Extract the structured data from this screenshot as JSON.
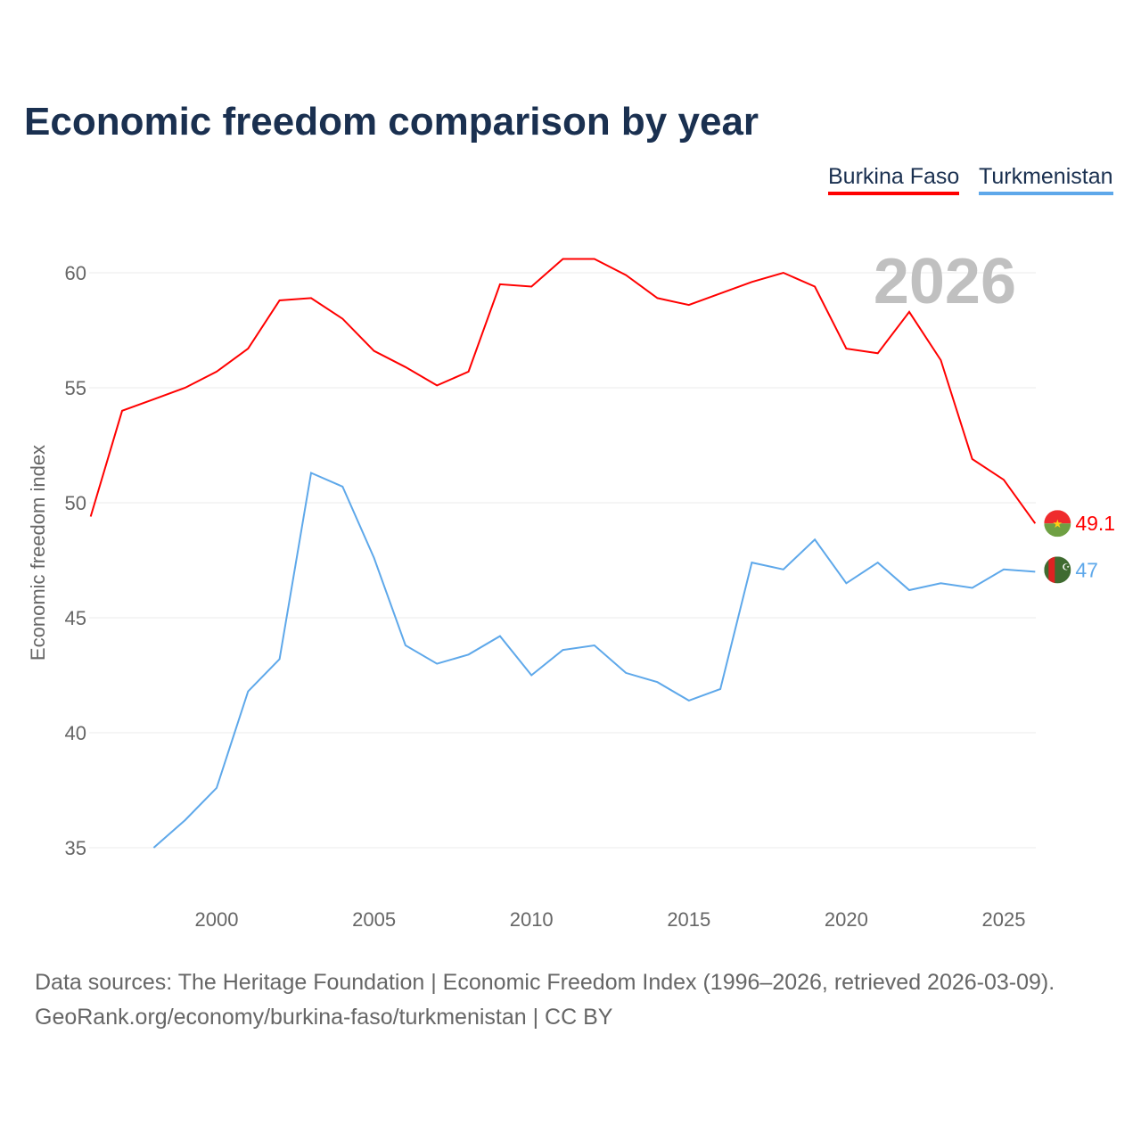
{
  "title": "Economic freedom comparison by year",
  "year_badge": "2026",
  "footer": {
    "line1": "Data sources: The Heritage Foundation | Economic Freedom Index (1996–2026, retrieved 2026-03-09).",
    "line2": "GeoRank.org/economy/burkina-faso/turkmenistan | CC BY"
  },
  "chart_data": {
    "type": "line",
    "title": "Economic freedom comparison by year",
    "xlabel": "",
    "ylabel": "Economic freedom index",
    "xlim": [
      1996,
      2026
    ],
    "ylim": [
      33,
      62
    ],
    "xticks": [
      2000,
      2005,
      2010,
      2015,
      2020,
      2025
    ],
    "yticks": [
      35,
      40,
      45,
      50,
      55,
      60
    ],
    "grid": true,
    "legend": "top-right",
    "series": [
      {
        "name": "Burkina Faso",
        "color": "#ff0000",
        "end_label": "49.1",
        "flag": "burkina-faso",
        "x": [
          1996,
          1997,
          1998,
          1999,
          2000,
          2001,
          2002,
          2003,
          2004,
          2005,
          2006,
          2007,
          2008,
          2009,
          2010,
          2011,
          2012,
          2013,
          2014,
          2015,
          2016,
          2017,
          2018,
          2019,
          2020,
          2021,
          2022,
          2023,
          2024,
          2025,
          2026
        ],
        "values": [
          49.4,
          54.0,
          54.5,
          55.0,
          55.7,
          56.7,
          58.8,
          58.9,
          58.0,
          56.6,
          55.9,
          55.1,
          55.7,
          59.5,
          59.4,
          60.6,
          60.6,
          59.9,
          58.9,
          58.6,
          59.1,
          59.6,
          60.0,
          59.4,
          56.7,
          56.5,
          58.3,
          56.2,
          51.9,
          51.0,
          49.1
        ]
      },
      {
        "name": "Turkmenistan",
        "color": "#5ea8ea",
        "end_label": "47",
        "flag": "turkmenistan",
        "x": [
          1998,
          1999,
          2000,
          2001,
          2002,
          2003,
          2004,
          2005,
          2006,
          2007,
          2008,
          2009,
          2010,
          2011,
          2012,
          2013,
          2014,
          2015,
          2016,
          2017,
          2018,
          2019,
          2020,
          2021,
          2022,
          2023,
          2024,
          2025,
          2026
        ],
        "values": [
          35.0,
          36.2,
          37.6,
          41.8,
          43.2,
          51.3,
          50.7,
          47.6,
          43.8,
          43.0,
          43.4,
          44.2,
          42.5,
          43.6,
          43.8,
          42.6,
          42.2,
          41.4,
          41.9,
          47.4,
          47.1,
          48.4,
          46.5,
          47.4,
          46.2,
          46.5,
          46.3,
          47.1,
          47.0
        ]
      }
    ]
  }
}
